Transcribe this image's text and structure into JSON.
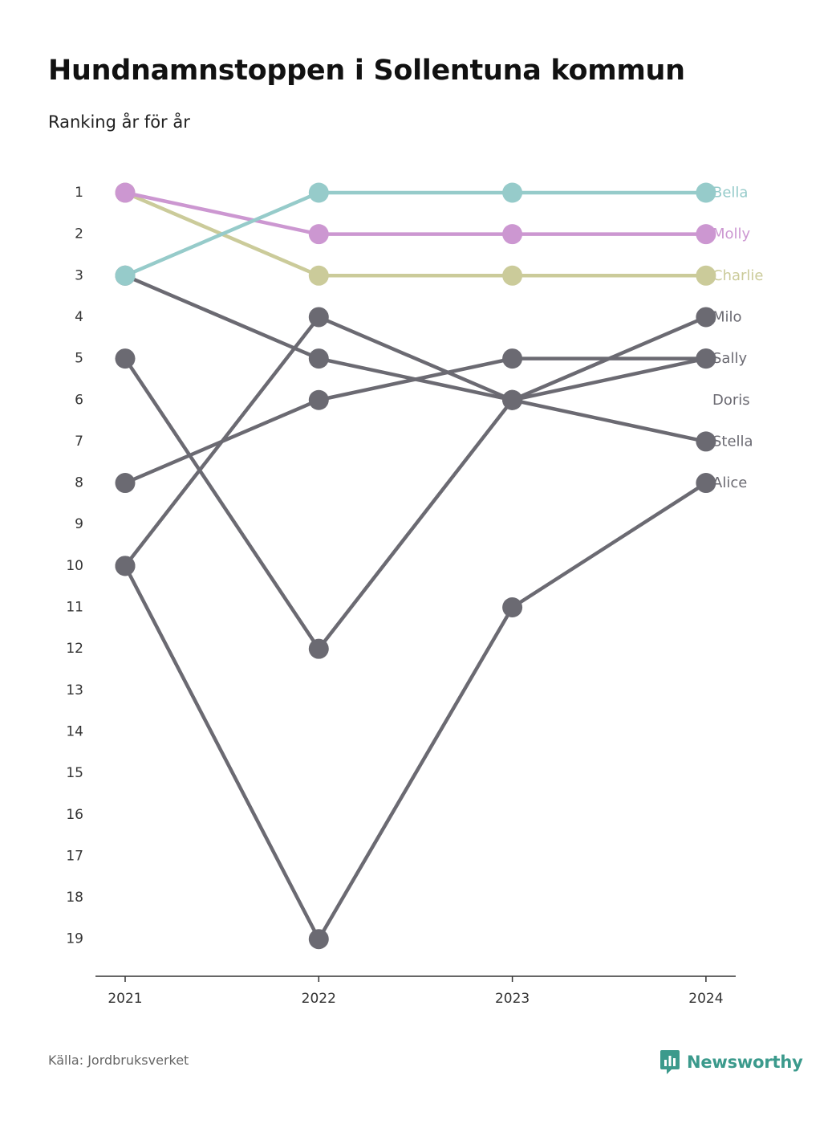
{
  "header": {
    "title": "Hundnamnstoppen i Sollentuna kommun",
    "subtitle": "Ranking år för år"
  },
  "footer": {
    "source": "Källa: Jordbruksverket",
    "brand": "Newsworthy",
    "brand_icon": "bar-chart-chat-bubble-icon"
  },
  "colors": {
    "highlight_1": "#96cbca",
    "highlight_2": "#cc97d1",
    "highlight_3": "#cbcb9a",
    "other": "#6b6a72",
    "brand": "#3b9a8c"
  },
  "chart_data": {
    "type": "line",
    "subtype": "bump",
    "x": [
      "2021",
      "2022",
      "2023",
      "2024"
    ],
    "y_axis": {
      "reversed": true,
      "range": [
        1,
        19
      ],
      "ticks": [
        1,
        2,
        3,
        4,
        5,
        6,
        7,
        8,
        9,
        10,
        11,
        12,
        13,
        14,
        15,
        16,
        17,
        18,
        19
      ]
    },
    "grid": false,
    "legend": "labels at end of lines, right",
    "series": [
      {
        "name": "Bella",
        "values": [
          3,
          1,
          1,
          1
        ],
        "color": "#96cbca"
      },
      {
        "name": "Molly",
        "values": [
          1,
          2,
          2,
          2
        ],
        "color": "#cc97d1"
      },
      {
        "name": "Charlie",
        "values": [
          1,
          3,
          3,
          3
        ],
        "color": "#cbcb9a"
      },
      {
        "name": "Milo",
        "values": [
          10,
          4,
          6,
          4
        ],
        "color": "#6b6a72"
      },
      {
        "name": "Sally",
        "values": [
          8,
          6,
          5,
          5
        ],
        "color": "#6b6a72"
      },
      {
        "name": "Doris",
        "values": [
          5,
          12,
          6,
          5
        ],
        "color": "#6b6a72"
      },
      {
        "name": "Stella",
        "values": [
          3,
          5,
          6,
          7
        ],
        "color": "#6b6a72"
      },
      {
        "name": "Alice",
        "values": [
          10,
          19,
          11,
          8
        ],
        "color": "#6b6a72"
      }
    ]
  }
}
